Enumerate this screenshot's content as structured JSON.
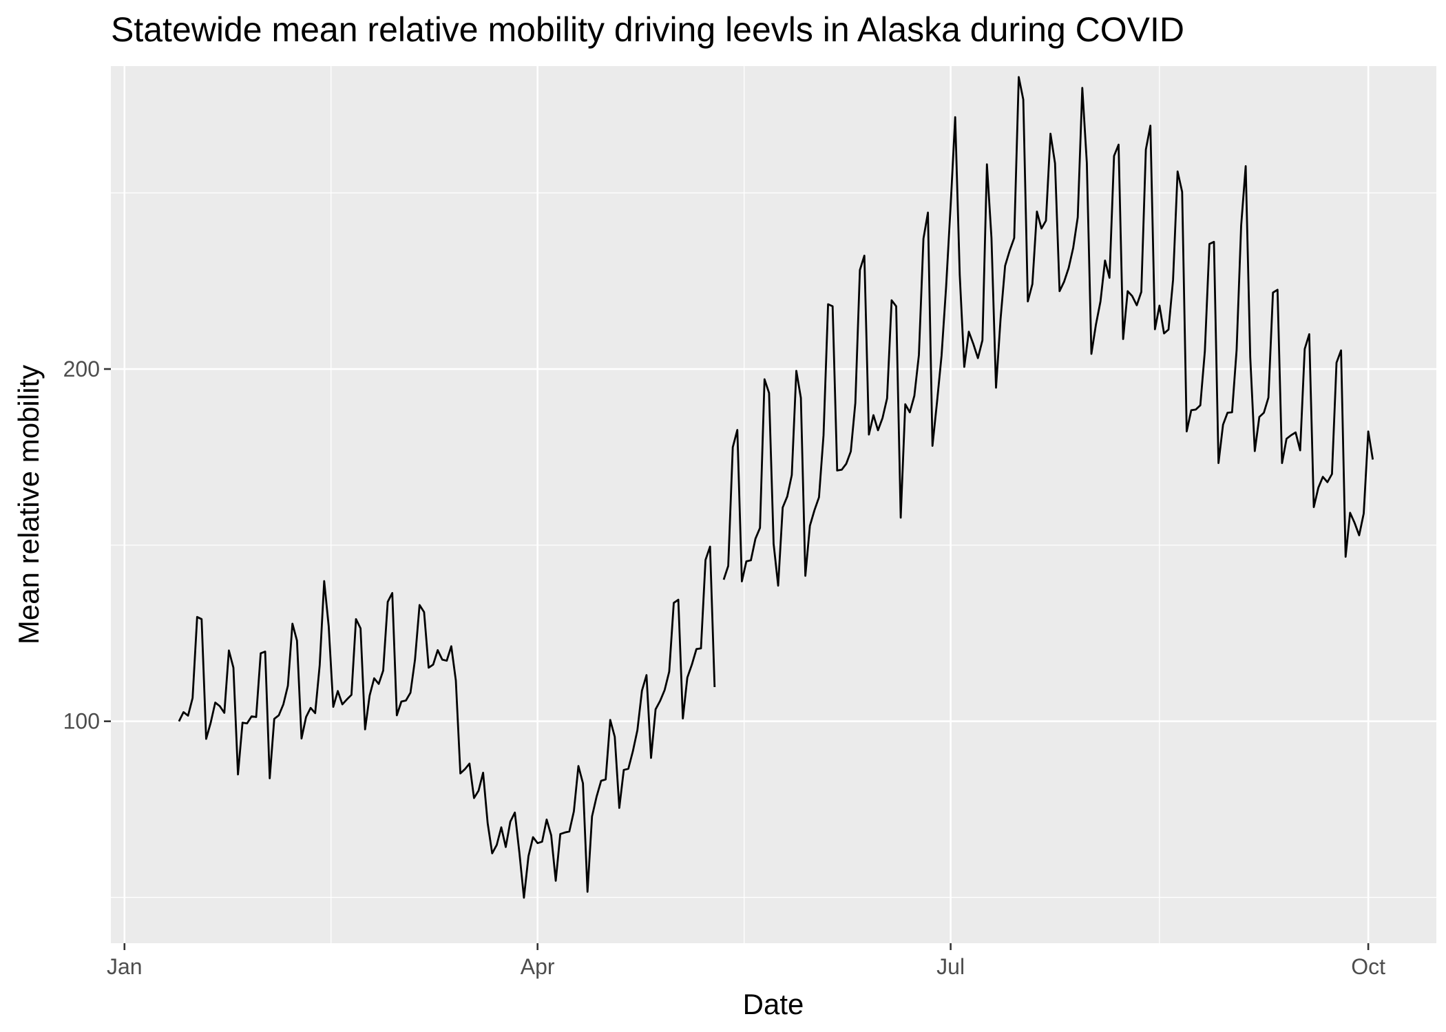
{
  "chart_data": {
    "type": "line",
    "title": "Statewide mean relative mobility driving leevls in Alaska during COVID",
    "xlabel": "Date",
    "ylabel": "Mean relative mobility",
    "x_start": "2020-01-13",
    "x_ticks": [
      {
        "label": "Jan",
        "date": "2020-01-01"
      },
      {
        "label": "Apr",
        "date": "2020-04-01"
      },
      {
        "label": "Jul",
        "date": "2020-07-01"
      },
      {
        "label": "Oct",
        "date": "2020-10-01"
      }
    ],
    "xlim": [
      "2019-12-29",
      "2020-10-16"
    ],
    "y_ticks": [
      100,
      200
    ],
    "ylim": [
      37,
      286
    ],
    "grid": true,
    "colors": {
      "line": "#000000",
      "panel": "#ebebeb",
      "grid": "#ffffff"
    },
    "segments": [
      [
        100.0,
        102.6,
        101.6,
        106.6,
        129.6,
        129.0,
        95.0,
        99.6,
        105.3,
        104.3,
        102.4,
        120.1,
        115.2,
        84.9,
        99.6,
        99.4,
        101.4,
        101.2,
        119.3,
        119.8,
        83.8,
        100.7,
        101.7,
        104.8,
        110.1,
        127.7,
        122.9,
        95.1,
        101.2,
        103.8,
        102.3,
        115.9,
        139.8,
        126.9,
        104.1,
        108.6,
        104.8,
        106.2,
        107.5,
        129.0,
        126.4,
        97.7,
        107.3,
        112.2,
        110.6,
        114.4,
        133.9,
        136.4,
        101.7,
        105.6,
        105.9,
        108.1,
        117.5,
        133.0,
        131.0,
        115.2,
        116.1,
        120.2,
        117.5,
        117.2,
        121.3,
        111.6,
        85.2,
        86.4,
        88.0,
        78.2,
        80.3,
        85.4,
        71.1,
        62.5,
        64.9,
        69.9,
        64.3,
        71.5,
        74.1,
        62.7,
        49.9,
        61.7,
        67.1,
        65.4,
        65.8,
        72.1,
        67.6,
        54.7,
        68.0,
        68.4,
        68.7,
        74.4,
        87.3,
        82.4,
        51.6,
        73.0,
        78.6,
        83.1,
        83.5,
        100.4,
        95.6,
        75.4,
        86.2,
        86.5,
        91.5,
        97.5,
        108.7,
        113.1,
        89.6,
        103.4,
        105.8,
        108.9,
        114.1,
        133.6,
        134.5,
        100.8,
        112.4,
        116.1,
        120.5,
        120.7,
        145.8,
        149.6,
        109.7
      ],
      [
        140.2,
        144.1,
        177.8,
        182.7,
        139.7,
        145.4,
        145.7,
        151.8,
        154.9,
        197.1,
        193.2,
        150.4,
        138.5,
        160.7,
        163.8,
        169.9,
        199.5,
        191.8,
        141.3,
        155.5,
        159.9,
        163.6,
        181.2,
        218.4,
        217.8,
        171.2,
        171.4,
        173.1,
        176.6,
        190.4,
        228.1,
        232.2,
        181.4,
        186.9,
        182.6,
        186.1,
        191.7,
        219.5,
        217.8,
        157.8,
        190.0,
        187.7,
        192.4,
        204.0,
        237.0,
        244.4,
        178.2,
        190.6,
        203.8,
        223.3,
        246.4,
        271.5,
        226.8,
        200.6,
        210.6,
        207.1,
        203.1,
        208.2,
        258.1,
        237.2,
        194.7,
        214.2,
        229.3,
        233.6,
        237.2,
        282.9,
        276.5,
        219.2,
        224.1,
        244.7,
        239.9,
        242.1,
        266.8,
        258.4,
        222.1,
        224.8,
        228.7,
        234.4,
        243.1,
        279.8,
        258.5,
        204.3,
        212.6,
        219.2,
        230.8,
        225.9,
        260.5,
        263.7,
        208.5,
        222.1,
        220.7,
        218.1,
        221.9,
        262.3,
        269.1,
        211.3,
        218.0,
        210.1,
        211.2,
        225.3,
        256.1,
        250.3,
        182.3,
        188.3,
        188.5,
        189.7,
        205.1,
        235.5,
        236.1,
        173.3,
        184.2,
        187.6,
        187.7,
        205.4,
        240.7,
        257.6,
        203.4,
        176.7,
        186.4,
        187.6,
        191.9,
        221.7,
        222.5,
        173.3,
        180.2,
        181.2,
        182.0,
        176.9,
        205.7,
        209.9,
        160.8,
        166.3,
        169.4,
        167.9,
        170.2,
        201.8,
        205.3,
        146.7,
        159.2,
        156.3,
        152.8,
        159.0,
        182.3,
        174.3
      ]
    ]
  }
}
